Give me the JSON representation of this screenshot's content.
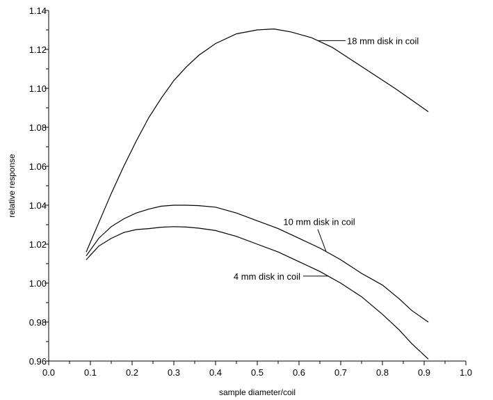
{
  "chart_data": {
    "type": "line",
    "title": "",
    "xlabel": "sample diameter/coil",
    "ylabel": "relative response",
    "xlim": [
      0.0,
      1.0
    ],
    "ylim": [
      0.96,
      1.14
    ],
    "xticks": [
      "0.0",
      "0.1",
      "0.2",
      "0.3",
      "0.4",
      "0.5",
      "0.6",
      "0.7",
      "0.8",
      "0.9",
      "1.0"
    ],
    "yticks": [
      "0.96",
      "0.98",
      "1.00",
      "1.02",
      "1.04",
      "1.06",
      "1.08",
      "1.10",
      "1.12",
      "1.14"
    ],
    "grid": false,
    "series": [
      {
        "name": "18 mm disk in coil",
        "x": [
          0.09,
          0.12,
          0.15,
          0.18,
          0.21,
          0.24,
          0.27,
          0.3,
          0.33,
          0.36,
          0.4,
          0.45,
          0.5,
          0.54,
          0.58,
          0.63,
          0.68,
          0.73,
          0.78,
          0.83,
          0.87,
          0.91
        ],
        "y": [
          1.016,
          1.031,
          1.046,
          1.06,
          1.073,
          1.085,
          1.095,
          1.104,
          1.111,
          1.117,
          1.123,
          1.128,
          1.13,
          1.1305,
          1.129,
          1.126,
          1.121,
          1.114,
          1.107,
          1.1,
          1.094,
          1.088
        ]
      },
      {
        "name": "10 mm disk in coil",
        "x": [
          0.09,
          0.12,
          0.15,
          0.18,
          0.21,
          0.24,
          0.27,
          0.3,
          0.33,
          0.36,
          0.4,
          0.45,
          0.5,
          0.55,
          0.6,
          0.65,
          0.7,
          0.75,
          0.8,
          0.84,
          0.87,
          0.91
        ],
        "y": [
          1.014,
          1.023,
          1.029,
          1.033,
          1.036,
          1.038,
          1.0395,
          1.04,
          1.04,
          1.0398,
          1.039,
          1.036,
          1.032,
          1.028,
          1.023,
          1.018,
          1.012,
          1.005,
          0.999,
          0.992,
          0.986,
          0.98
        ]
      },
      {
        "name": "4 mm disk in coil",
        "x": [
          0.09,
          0.12,
          0.15,
          0.18,
          0.21,
          0.24,
          0.27,
          0.3,
          0.33,
          0.36,
          0.4,
          0.45,
          0.5,
          0.55,
          0.6,
          0.65,
          0.7,
          0.75,
          0.8,
          0.84,
          0.87,
          0.91
        ],
        "y": [
          1.012,
          1.019,
          1.023,
          1.026,
          1.0275,
          1.028,
          1.0287,
          1.029,
          1.0288,
          1.0282,
          1.027,
          1.024,
          1.02,
          1.016,
          1.011,
          1.006,
          1.0,
          0.993,
          0.984,
          0.976,
          0.969,
          0.961
        ]
      }
    ],
    "annotations": [
      {
        "series": "18 mm disk in coil",
        "text": "18 mm disk in coil"
      },
      {
        "series": "10 mm disk in coil",
        "text": "10 mm disk in coil"
      },
      {
        "series": "4 mm disk in coil",
        "text": "4 mm disk in coil"
      }
    ]
  }
}
